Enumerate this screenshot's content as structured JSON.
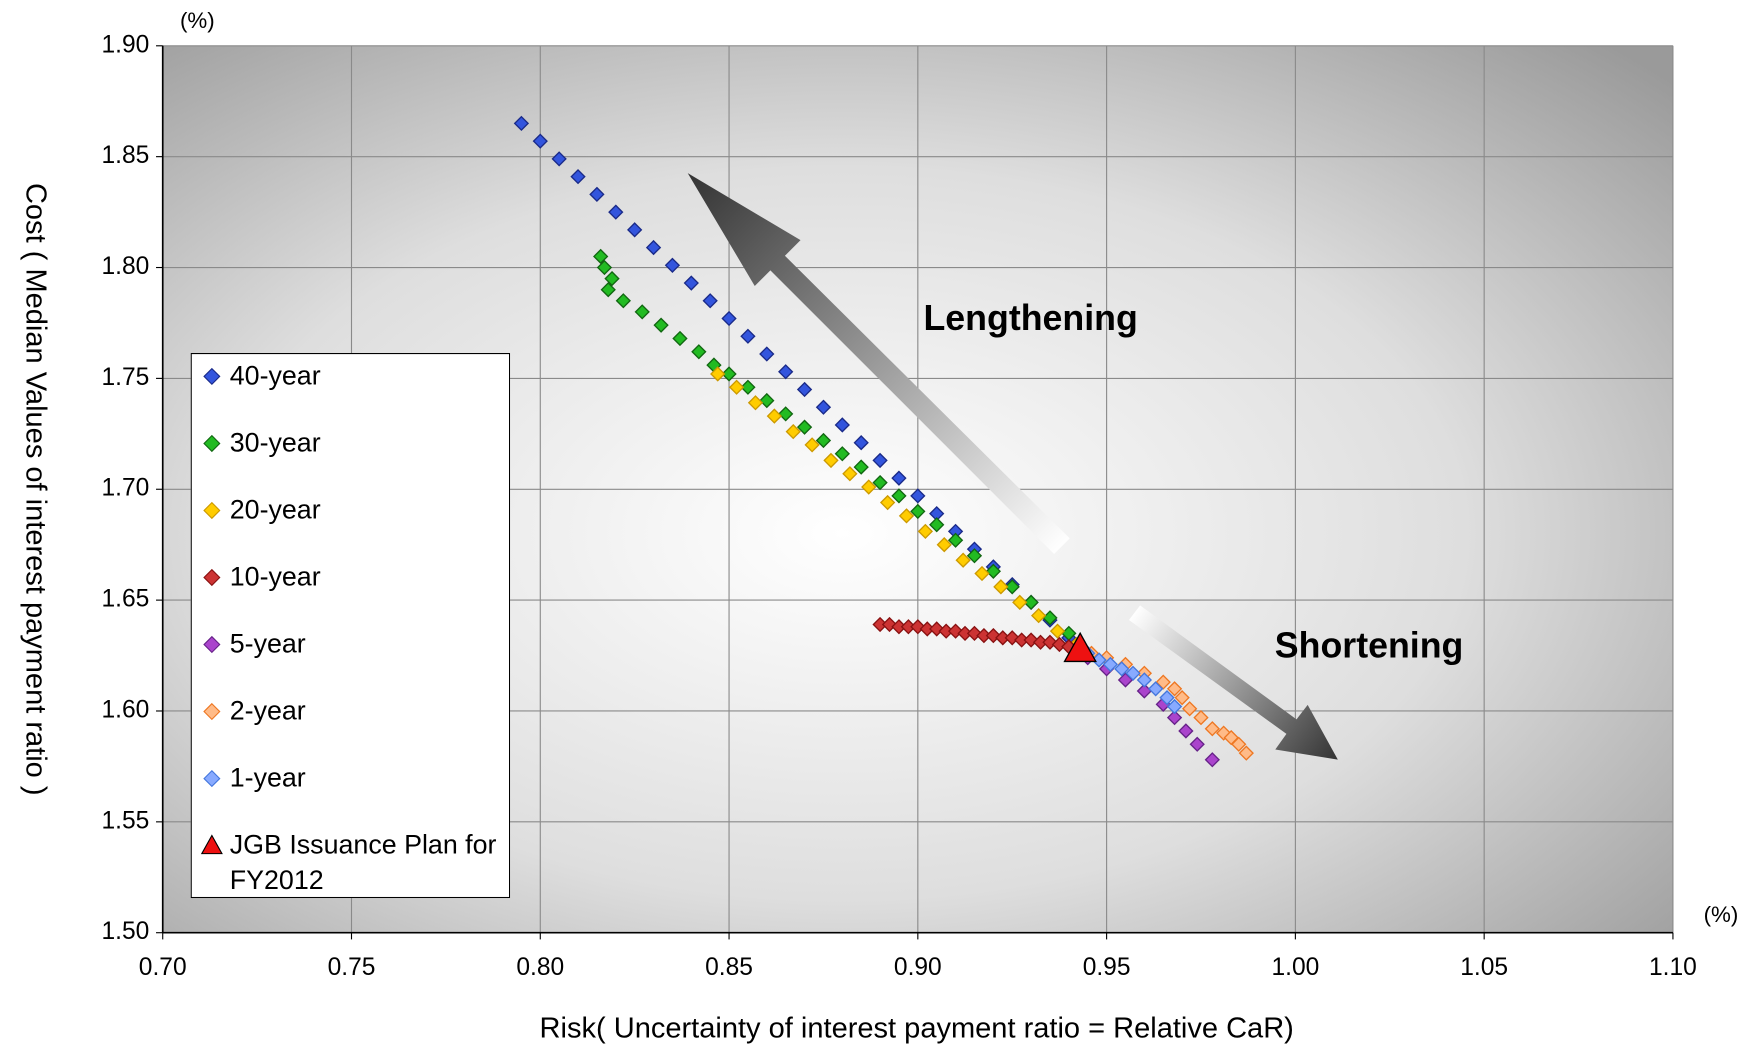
{
  "chart_data": {
    "type": "scatter",
    "x_label": "Risk( Uncertainty of interest payment ratio = Relative CaR)",
    "y_label": "Cost ( Median Values of interest payment ratio )",
    "x_unit": "(%)",
    "y_unit": "(%)",
    "annotations": [
      "Lengthening",
      "Shortening"
    ],
    "xlim": [
      0.7,
      1.1
    ],
    "xticks": [
      {
        "value": 0.7,
        "label": "0.70"
      },
      0.75,
      {
        "value": 0.8,
        "label": "0.80"
      },
      0.85,
      {
        "value": 0.9,
        "label": "0.90"
      },
      0.95,
      {
        "value": 1.0,
        "label": "1.00"
      },
      1.05,
      {
        "value": 1.1,
        "label": "1.10"
      }
    ],
    "ylim": [
      1.5,
      1.9
    ],
    "yticks": [
      {
        "value": 1.5,
        "label": "1.50"
      },
      1.55,
      {
        "value": 1.6,
        "label": "1.60"
      },
      1.65,
      {
        "value": 1.7,
        "label": "1.70"
      },
      1.75,
      {
        "value": 1.8,
        "label": "1.80"
      },
      1.85,
      {
        "value": 1.9,
        "label": "1.90"
      }
    ],
    "grid": true,
    "legend": "left",
    "series": [
      {
        "name": "40-year",
        "color": "#3355dd",
        "edge": "#1a2a88",
        "marker": "diamond",
        "x": [
          0.795,
          0.8,
          0.805,
          0.81,
          0.815,
          0.82,
          0.825,
          0.83,
          0.835,
          0.84,
          0.845,
          0.85,
          0.855,
          0.86,
          0.865,
          0.87,
          0.875,
          0.88,
          0.885,
          0.89,
          0.895,
          0.9,
          0.905,
          0.91,
          0.915,
          0.92,
          0.925,
          0.93,
          0.935,
          0.94
        ],
        "y": [
          1.865,
          1.857,
          1.849,
          1.841,
          1.833,
          1.825,
          1.817,
          1.809,
          1.801,
          1.793,
          1.785,
          1.777,
          1.769,
          1.761,
          1.753,
          1.745,
          1.737,
          1.729,
          1.721,
          1.713,
          1.705,
          1.697,
          1.689,
          1.681,
          1.673,
          1.665,
          1.657,
          1.649,
          1.641,
          1.633
        ]
      },
      {
        "name": "30-year",
        "color": "#22bb22",
        "edge": "#116611",
        "marker": "diamond",
        "x": [
          0.816,
          0.817,
          0.819,
          0.818,
          0.822,
          0.827,
          0.832,
          0.837,
          0.842,
          0.846,
          0.85,
          0.855,
          0.86,
          0.865,
          0.87,
          0.875,
          0.88,
          0.885,
          0.89,
          0.895,
          0.9,
          0.905,
          0.91,
          0.915,
          0.92,
          0.925,
          0.93,
          0.935,
          0.94
        ],
        "y": [
          1.805,
          1.8,
          1.795,
          1.79,
          1.785,
          1.78,
          1.774,
          1.768,
          1.762,
          1.756,
          1.752,
          1.746,
          1.74,
          1.734,
          1.728,
          1.722,
          1.716,
          1.71,
          1.703,
          1.697,
          1.69,
          1.684,
          1.677,
          1.67,
          1.663,
          1.656,
          1.649,
          1.642,
          1.635
        ]
      },
      {
        "name": "20-year",
        "color": "#ffcc00",
        "edge": "#cc9900",
        "marker": "diamond",
        "x": [
          0.847,
          0.852,
          0.857,
          0.862,
          0.867,
          0.872,
          0.877,
          0.882,
          0.887,
          0.892,
          0.897,
          0.902,
          0.907,
          0.912,
          0.917,
          0.922,
          0.927,
          0.932,
          0.937,
          0.942
        ],
        "y": [
          1.752,
          1.746,
          1.739,
          1.733,
          1.726,
          1.72,
          1.713,
          1.707,
          1.701,
          1.694,
          1.688,
          1.681,
          1.675,
          1.668,
          1.662,
          1.656,
          1.649,
          1.643,
          1.636,
          1.63
        ]
      },
      {
        "name": "10-year",
        "color": "#cc3333",
        "edge": "#881111",
        "marker": "diamond",
        "x": [
          0.89,
          0.8925,
          0.895,
          0.8975,
          0.9,
          0.9025,
          0.905,
          0.9075,
          0.91,
          0.9125,
          0.915,
          0.9175,
          0.92,
          0.9225,
          0.925,
          0.9275,
          0.93,
          0.9325,
          0.935,
          0.9375,
          0.94
        ],
        "y": [
          1.639,
          1.639,
          1.638,
          1.638,
          1.638,
          1.637,
          1.637,
          1.636,
          1.636,
          1.635,
          1.635,
          1.634,
          1.634,
          1.633,
          1.633,
          1.632,
          1.632,
          1.631,
          1.631,
          1.63,
          1.629
        ]
      },
      {
        "name": "5-year",
        "color": "#aa44cc",
        "edge": "#662288",
        "marker": "diamond",
        "x": [
          0.945,
          0.95,
          0.955,
          0.96,
          0.965,
          0.968,
          0.971,
          0.974,
          0.978
        ],
        "y": [
          1.624,
          1.619,
          1.614,
          1.609,
          1.603,
          1.597,
          1.591,
          1.585,
          1.578
        ]
      },
      {
        "name": "2-year",
        "color": "#ffbb88",
        "edge": "#ee7722",
        "marker": "diamond",
        "x": [
          0.946,
          0.95,
          0.955,
          0.96,
          0.965,
          0.968,
          0.97,
          0.972,
          0.975,
          0.978,
          0.981,
          0.983,
          0.985,
          0.987
        ],
        "y": [
          1.626,
          1.624,
          1.621,
          1.617,
          1.613,
          1.61,
          1.606,
          1.601,
          1.597,
          1.592,
          1.59,
          1.588,
          1.585,
          1.581
        ]
      },
      {
        "name": "1-year",
        "color": "#88aaff",
        "edge": "#4477dd",
        "marker": "diamond",
        "x": [
          0.945,
          0.948,
          0.951,
          0.954,
          0.957,
          0.96,
          0.963,
          0.966,
          0.968
        ],
        "y": [
          1.626,
          1.623,
          1.621,
          1.619,
          1.617,
          1.614,
          1.61,
          1.606,
          1.602
        ]
      },
      {
        "name": "JGB Issuance Plan for FY2012",
        "color": "#ee1111",
        "edge": "#000000",
        "marker": "triangle",
        "x": [
          0.943
        ],
        "y": [
          1.628
        ]
      }
    ]
  }
}
